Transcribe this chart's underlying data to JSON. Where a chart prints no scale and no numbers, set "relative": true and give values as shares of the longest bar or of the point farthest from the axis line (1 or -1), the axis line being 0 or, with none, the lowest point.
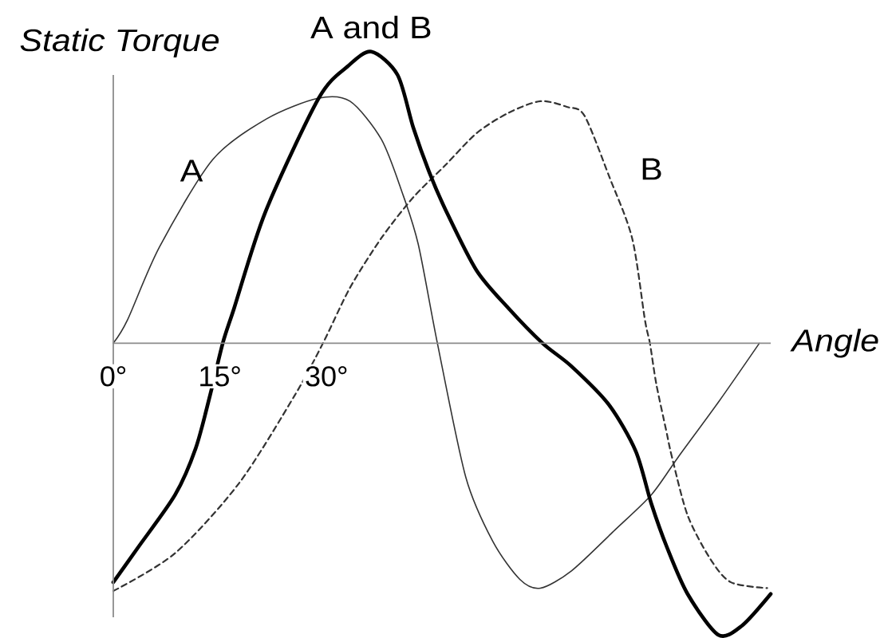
{
  "chart_data": {
    "type": "line",
    "relative": true,
    "xlabel": "Angle",
    "ylabel": "Static Torque",
    "xlim": [
      0,
      92.5
    ],
    "xticks": [
      {
        "value": 0,
        "label": "0°"
      },
      {
        "value": 15,
        "label": "15°"
      },
      {
        "value": 30,
        "label": "30°"
      }
    ],
    "tick_labels": "x",
    "series": [
      {
        "name": "A",
        "color": "#333333",
        "line_style": "solid",
        "x": [
          0,
          2,
          6.5,
          14,
          21.6,
          28.8,
          33.3,
          37.7,
          40.6,
          42.9,
          45.6,
          49.6,
          53.4,
          57.2,
          60.1,
          64.5,
          70.6,
          75.7,
          79.5,
          85.2,
          90.9
        ],
        "values": [
          0,
          0.08,
          0.33,
          0.63,
          0.77,
          0.84,
          0.83,
          0.7,
          0.52,
          0.34,
          0,
          -0.46,
          -0.68,
          -0.81,
          -0.84,
          -0.78,
          -0.64,
          -0.52,
          -0.39,
          -0.2,
          0
        ]
      },
      {
        "name": "B",
        "color": "#333333",
        "line_style": "dashed",
        "x": [
          0,
          8.7,
          17.7,
          25.5,
          29.5,
          33.3,
          37.7,
          42.2,
          46.7,
          51.1,
          55.6,
          60.1,
          63.9,
          66.3,
          69.8,
          73,
          74.8,
          75.5,
          76.4,
          77.8,
          78.6,
          80.8,
          84,
          86.9,
          92
        ],
        "values": [
          -0.85,
          -0.72,
          -0.48,
          -0.18,
          0,
          0.19,
          0.36,
          0.5,
          0.61,
          0.72,
          0.79,
          0.83,
          0.81,
          0.78,
          0.57,
          0.36,
          0.08,
          0,
          -0.14,
          -0.3,
          -0.39,
          -0.59,
          -0.74,
          -0.82,
          -0.84
        ]
      },
      {
        "name": "A and B",
        "color": "#000000",
        "line_style": "solid",
        "x": [
          0,
          3.5,
          8.7,
          11.6,
          13.6,
          15.4,
          17,
          21.4,
          28.9,
          33,
          36.3,
          40,
          42.2,
          44.4,
          46.7,
          51.1,
          55.6,
          60.4,
          64.5,
          69.7,
          73.5,
          75.7,
          77.9,
          80.8,
          85.1,
          88.4,
          92.5
        ],
        "values": [
          -0.82,
          -0.7,
          -0.52,
          -0.36,
          -0.18,
          0,
          0.12,
          0.45,
          0.84,
          0.95,
          1,
          0.92,
          0.74,
          0.59,
          0.46,
          0.25,
          0.12,
          0,
          -0.08,
          -0.21,
          -0.37,
          -0.55,
          -0.7,
          -0.86,
          -1,
          -0.97,
          -0.86
        ]
      }
    ]
  }
}
